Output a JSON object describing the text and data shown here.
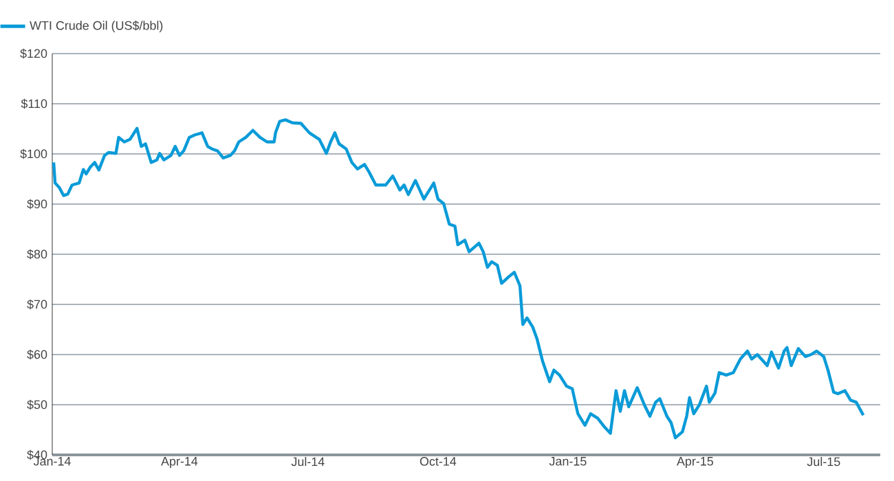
{
  "chart_data": {
    "type": "line",
    "legend": "top left",
    "grid": "y",
    "line_style": "solid",
    "xlim": [
      "2014-01-01",
      "2015-08-10"
    ],
    "xticks": [
      {
        "value": "2014-01-01",
        "label": "Jan-14"
      },
      {
        "value": "2014-04-01",
        "label": "Apr-14"
      },
      {
        "value": "2014-07-01",
        "label": "Jul-14"
      },
      {
        "value": "2014-10-01",
        "label": "Oct-14"
      },
      {
        "value": "2015-01-01",
        "label": "Jan-15"
      },
      {
        "value": "2015-04-01",
        "label": "Apr-15"
      },
      {
        "value": "2015-07-01",
        "label": "Jul-15"
      }
    ],
    "ylim": [
      40,
      120
    ],
    "yticks": [
      {
        "value": 40,
        "label": "$40"
      },
      {
        "value": 50,
        "label": "$50"
      },
      {
        "value": 60,
        "label": "$60"
      },
      {
        "value": 70,
        "label": "$70"
      },
      {
        "value": 80,
        "label": "$80"
      },
      {
        "value": 90,
        "label": "$90"
      },
      {
        "value": 100,
        "label": "$100"
      },
      {
        "value": 110,
        "label": "$110"
      },
      {
        "value": 120,
        "label": "$120"
      }
    ],
    "series": [
      {
        "name": "WTI Crude Oil (US$/bbl)",
        "color": "#0a9bd8",
        "x": [
          "2014-01-02",
          "2014-01-03",
          "2014-01-06",
          "2014-01-09",
          "2014-01-12",
          "2014-01-15",
          "2014-01-20",
          "2014-01-23",
          "2014-01-25",
          "2014-01-28",
          "2014-01-31",
          "2014-02-03",
          "2014-02-07",
          "2014-02-10",
          "2014-02-15",
          "2014-02-17",
          "2014-02-21",
          "2014-02-25",
          "2014-03-02",
          "2014-03-05",
          "2014-03-08",
          "2014-03-12",
          "2014-03-16",
          "2014-03-18",
          "2014-03-21",
          "2014-03-26",
          "2014-03-29",
          "2014-04-01",
          "2014-04-04",
          "2014-04-08",
          "2014-04-12",
          "2014-04-17",
          "2014-04-21",
          "2014-04-24",
          "2014-04-28",
          "2014-05-02",
          "2014-05-07",
          "2014-05-10",
          "2014-05-13",
          "2014-05-18",
          "2014-05-23",
          "2014-05-28",
          "2014-06-02",
          "2014-06-07",
          "2014-06-08",
          "2014-06-11",
          "2014-06-15",
          "2014-06-20",
          "2014-06-26",
          "2014-07-02",
          "2014-07-09",
          "2014-07-14",
          "2014-07-17",
          "2014-07-20",
          "2014-07-23",
          "2014-07-28",
          "2014-08-01",
          "2014-08-05",
          "2014-08-10",
          "2014-08-13",
          "2014-08-18",
          "2014-08-25",
          "2014-08-30",
          "2014-09-04",
          "2014-09-07",
          "2014-09-10",
          "2014-09-15",
          "2014-09-21",
          "2014-09-28",
          "2014-10-01",
          "2014-10-05",
          "2014-10-09",
          "2014-10-13",
          "2014-10-15",
          "2014-10-20",
          "2014-10-23",
          "2014-10-30",
          "2014-11-02",
          "2014-11-05",
          "2014-11-08",
          "2014-11-12",
          "2014-11-15",
          "2014-11-20",
          "2014-11-24",
          "2014-11-28",
          "2014-11-30",
          "2014-12-03",
          "2014-12-07",
          "2014-12-10",
          "2014-12-14",
          "2014-12-19",
          "2014-12-22",
          "2014-12-26",
          "2014-12-31",
          "2015-01-04",
          "2015-01-08",
          "2015-01-13",
          "2015-01-17",
          "2015-01-22",
          "2015-01-27",
          "2015-01-31",
          "2015-02-04",
          "2015-02-07",
          "2015-02-10",
          "2015-02-13",
          "2015-02-19",
          "2015-02-24",
          "2015-02-28",
          "2015-03-04",
          "2015-03-07",
          "2015-03-12",
          "2015-03-15",
          "2015-03-18",
          "2015-03-23",
          "2015-03-26",
          "2015-03-28",
          "2015-03-31",
          "2015-04-04",
          "2015-04-09",
          "2015-04-11",
          "2015-04-15",
          "2015-04-18",
          "2015-04-23",
          "2015-04-28",
          "2015-05-03",
          "2015-05-08",
          "2015-05-11",
          "2015-05-15",
          "2015-05-22",
          "2015-05-25",
          "2015-05-30",
          "2015-06-03",
          "2015-06-05",
          "2015-06-08",
          "2015-06-13",
          "2015-06-18",
          "2015-06-22",
          "2015-06-26",
          "2015-07-01",
          "2015-07-04",
          "2015-07-08",
          "2015-07-11",
          "2015-07-16",
          "2015-07-20",
          "2015-07-24",
          "2015-07-29"
        ],
        "values": [
          98.3,
          94.2,
          93.3,
          91.7,
          92,
          93.8,
          94.2,
          96.9,
          96,
          97.4,
          98.3,
          96.8,
          99.7,
          100.3,
          100.1,
          103.3,
          102.4,
          102.9,
          105.1,
          101.5,
          102,
          98.3,
          98.8,
          100.1,
          98.8,
          99.7,
          101.5,
          99.7,
          100.6,
          103.3,
          103.8,
          104.2,
          101.5,
          101,
          100.6,
          99.2,
          99.7,
          100.6,
          102.4,
          103.3,
          104.7,
          103.3,
          102.4,
          102.4,
          104.2,
          106.5,
          106.8,
          106.2,
          106.1,
          104.2,
          102.9,
          100.1,
          102.4,
          104.2,
          102,
          101,
          98.3,
          97,
          97.9,
          96.5,
          93.8,
          93.8,
          95.6,
          92.8,
          93.8,
          91.9,
          94.7,
          91,
          94.2,
          91,
          90.1,
          86,
          85.6,
          81.9,
          82.8,
          80.5,
          82.2,
          80.5,
          77.4,
          78.5,
          77.8,
          74.2,
          75.5,
          76.4,
          73.7,
          66,
          67.3,
          65.5,
          63.2,
          58.7,
          54.6,
          56.9,
          55.9,
          53.7,
          53.2,
          48.2,
          45.9,
          48.2,
          47.3,
          45.5,
          44.3,
          52.8,
          48.7,
          52.8,
          49.6,
          53.4,
          50,
          47.7,
          50.5,
          51.2,
          47.7,
          46.4,
          43.4,
          44.6,
          47.7,
          51.4,
          48.2,
          50,
          53.7,
          50.5,
          52.3,
          56.4,
          55.9,
          56.4,
          59.1,
          60.7,
          59.1,
          60,
          57.8,
          60.5,
          57.3,
          60.7,
          61.4,
          57.8,
          61.2,
          59.6,
          60,
          60.7,
          59.6,
          56.9,
          52.5,
          52.2,
          52.8,
          50.9,
          50.5,
          47.9
        ]
      }
    ]
  }
}
